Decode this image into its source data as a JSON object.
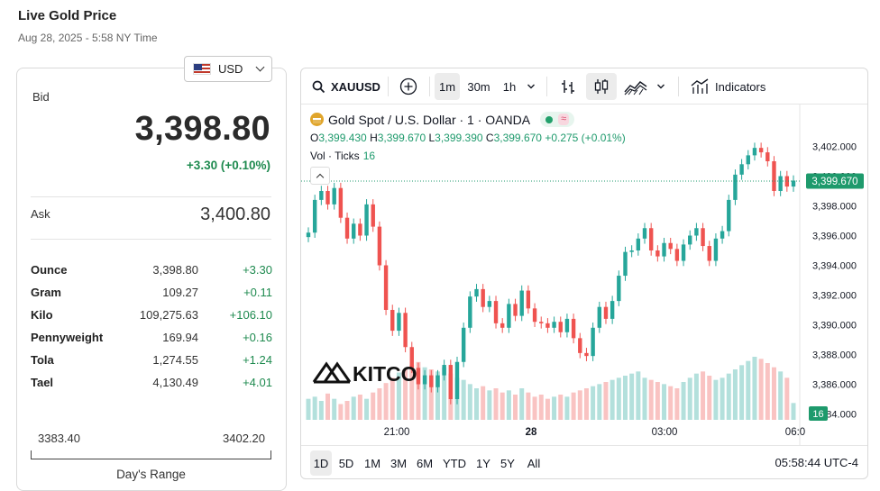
{
  "header": {
    "title": "Live Gold Price",
    "timestamp": "Aug 28, 2025 - 5:58 NY Time"
  },
  "currency": {
    "selected": "USD"
  },
  "quote": {
    "bid_label": "Bid",
    "bid": "3,398.80",
    "bid_change": "+3.30 (+0.10%)",
    "ask_label": "Ask",
    "ask": "3,400.80"
  },
  "units": [
    {
      "name": "Ounce",
      "price": "3,398.80",
      "change": "+3.30"
    },
    {
      "name": "Gram",
      "price": "109.27",
      "change": "+0.11"
    },
    {
      "name": "Kilo",
      "price": "109,275.63",
      "change": "+106.10"
    },
    {
      "name": "Pennyweight",
      "price": "169.94",
      "change": "+0.16"
    },
    {
      "name": "Tola",
      "price": "1,274.55",
      "change": "+1.24"
    },
    {
      "name": "Tael",
      "price": "4,130.49",
      "change": "+4.01"
    }
  ],
  "days_range": {
    "low": "3383.40",
    "high": "3402.20",
    "label": "Day's Range"
  },
  "toolbar": {
    "symbol": "XAUUSD",
    "intervals": [
      "1m",
      "30m",
      "1h"
    ],
    "active_interval": "1m",
    "indicators_label": "Indicators"
  },
  "legend": {
    "title": "Gold Spot / U.S. Dollar · 1 · OANDA",
    "o_label": "O",
    "o": "3,399.430",
    "h_label": "H",
    "h": "3,399.670",
    "l_label": "L",
    "l": "3,399.390",
    "c_label": "C",
    "c": "3,399.670",
    "change": "+0.275 (+0.01%)",
    "vol_label": "Vol · Ticks",
    "vol": "16"
  },
  "watermark": "KITCO",
  "ranges": [
    "1D",
    "5D",
    "1M",
    "3M",
    "6M",
    "YTD",
    "1Y",
    "5Y",
    "All"
  ],
  "active_range": "1D",
  "clock": "05:58:44 UTC-4",
  "colors": {
    "up": "#26a69a",
    "down": "#ef5350",
    "positive_text": "#1e8a4f",
    "price_tag": "#1e9a6c"
  },
  "chart_data": {
    "type": "line",
    "title": "Gold Spot / U.S. Dollar · 1 · OANDA",
    "x_ticks": [
      "21:00",
      "28",
      "03:00",
      "06:0"
    ],
    "y_ticks": [
      "3,402.000",
      "3,400.000",
      "3,398.000",
      "3,396.000",
      "3,394.000",
      "3,392.000",
      "3,390.000",
      "3,388.000",
      "3,386.000",
      "3,384.000"
    ],
    "ylim": [
      3383,
      3403
    ],
    "last_price": "3,399.670",
    "last_volume": "16",
    "series": [
      {
        "values": [
          3396.2,
          3398.4,
          3399.0,
          3398.1,
          3399.2,
          3397.2,
          3395.8,
          3396.8,
          3396.0,
          3398.1,
          3396.6,
          3394.0,
          3391.0,
          3389.6,
          3390.8,
          3388.5,
          3387.1,
          3386.0,
          3386.6,
          3385.8,
          3386.6,
          3387.3,
          3385.0,
          3387.5,
          3389.8,
          3391.9,
          3392.4,
          3391.2,
          3391.6,
          3390.1,
          3389.8,
          3391.4,
          3390.6,
          3392.3,
          3391.1,
          3390.2,
          3390.1,
          3389.8,
          3390.2,
          3389.5,
          3390.4,
          3389.1,
          3388.1,
          3387.9,
          3389.8,
          3391.2,
          3390.4,
          3391.6,
          3393.3,
          3394.9,
          3395.0,
          3395.8,
          3396.5,
          3395.0,
          3394.6,
          3395.5,
          3395.1,
          3394.3,
          3395.4,
          3396.0,
          3396.5,
          3395.3,
          3394.3,
          3395.8,
          3396.3,
          3398.4,
          3400.1,
          3400.8,
          3401.4,
          3401.9,
          3401.6,
          3401.0,
          3399.0,
          3400.0,
          3399.3,
          3399.7
        ]
      }
    ],
    "volume": [
      20,
      22,
      18,
      25,
      20,
      15,
      18,
      22,
      24,
      20,
      26,
      30,
      35,
      40,
      45,
      48,
      52,
      55,
      50,
      48,
      46,
      50,
      44,
      40,
      38,
      34,
      30,
      32,
      28,
      30,
      26,
      28,
      24,
      30,
      26,
      22,
      24,
      20,
      22,
      24,
      22,
      26,
      28,
      30,
      32,
      34,
      36,
      38,
      40,
      42,
      44,
      46,
      40,
      38,
      36,
      34,
      32,
      30,
      36,
      40,
      44,
      46,
      42,
      38,
      40,
      44,
      48,
      52,
      56,
      60,
      58,
      54,
      50,
      46,
      40,
      16
    ]
  }
}
